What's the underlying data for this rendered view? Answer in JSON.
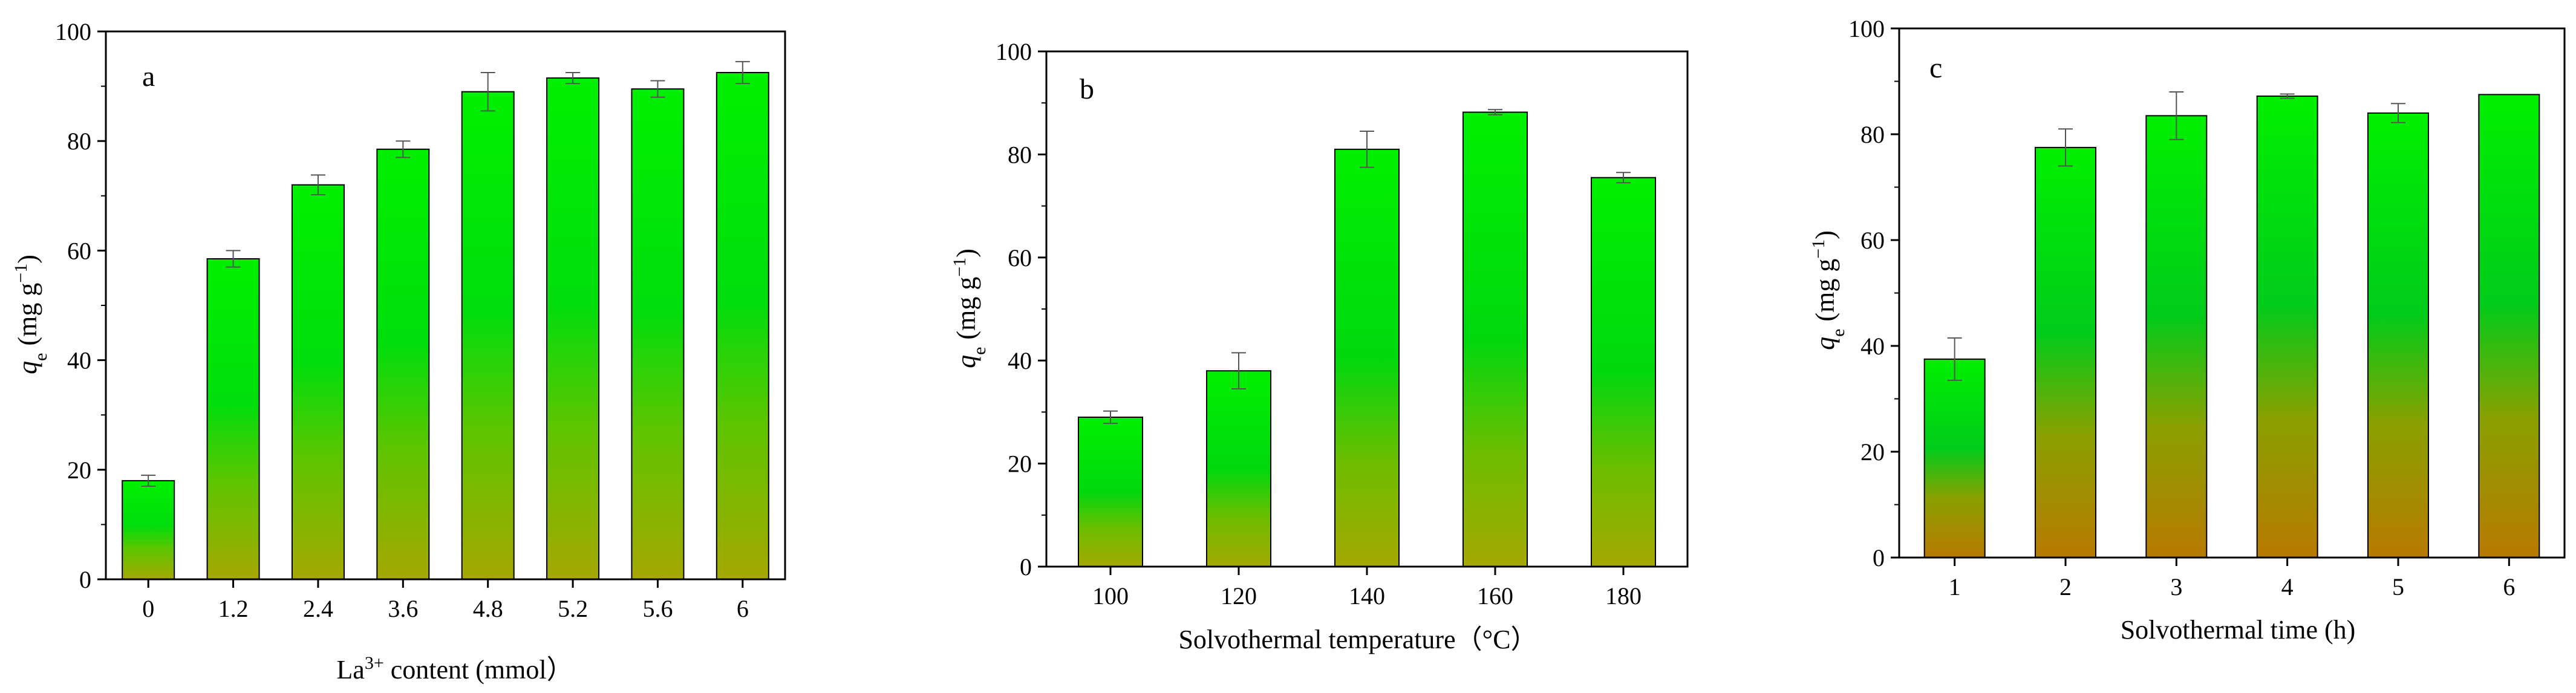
{
  "colors": {
    "bar_top": "#00f000",
    "bar_mid": "#00cc1a",
    "bar_bottom": "#a5a800",
    "bar_bottom_alt": "#b87a00",
    "axis": "#000000",
    "error_bar": "#555555"
  },
  "chart_data": [
    {
      "type": "bar",
      "panel_label": "a",
      "categories": [
        "0",
        "1.2",
        "2.4",
        "3.6",
        "4.8",
        "5.2",
        "5.6",
        "6"
      ],
      "values": [
        18,
        58.5,
        72,
        78.5,
        89,
        91.5,
        89.5,
        92.5
      ],
      "errors": [
        1,
        1.5,
        1.8,
        1.5,
        3.5,
        1,
        1.5,
        2
      ],
      "xlabel_main": "La",
      "xlabel_sup": "3+",
      "xlabel_rest": " content (mmol）",
      "ylabel_q": "q",
      "ylabel_sub": "e",
      "ylabel_units_open": "(mg g",
      "ylabel_units_sup": "−1",
      "ylabel_units_close": ")",
      "ylim": [
        0,
        100
      ],
      "yticks": [
        "0",
        "20",
        "40",
        "60",
        "80",
        "100"
      ]
    },
    {
      "type": "bar",
      "panel_label": "b",
      "categories": [
        "100",
        "120",
        "140",
        "160",
        "180"
      ],
      "values": [
        29,
        38,
        81,
        88.2,
        75.5
      ],
      "errors": [
        1.2,
        3.5,
        3.5,
        0.5,
        1
      ],
      "xlabel_main": "Solvothermal temperature（°C）",
      "ylabel_q": "q",
      "ylabel_sub": "e",
      "ylabel_units_open": "(mg g",
      "ylabel_units_sup": "−1",
      "ylabel_units_close": ")",
      "ylim": [
        0,
        100
      ],
      "yticks": [
        "0",
        "20",
        "40",
        "60",
        "80",
        "100"
      ]
    },
    {
      "type": "bar",
      "panel_label": "c",
      "categories": [
        "1",
        "2",
        "3",
        "4",
        "5",
        "6"
      ],
      "values": [
        37.5,
        77.5,
        83.5,
        87.2,
        84,
        87.5
      ],
      "errors": [
        4,
        3.5,
        4.5,
        0.4,
        1.8,
        0
      ],
      "xlabel_main": "Solvothermal time (h)",
      "ylabel_q": "q",
      "ylabel_sub": "e",
      "ylabel_units_open": "(mg g",
      "ylabel_units_sup": "−1",
      "ylabel_units_close": ")",
      "ylim": [
        0,
        100
      ],
      "yticks": [
        "0",
        "20",
        "40",
        "60",
        "80",
        "100"
      ]
    }
  ]
}
